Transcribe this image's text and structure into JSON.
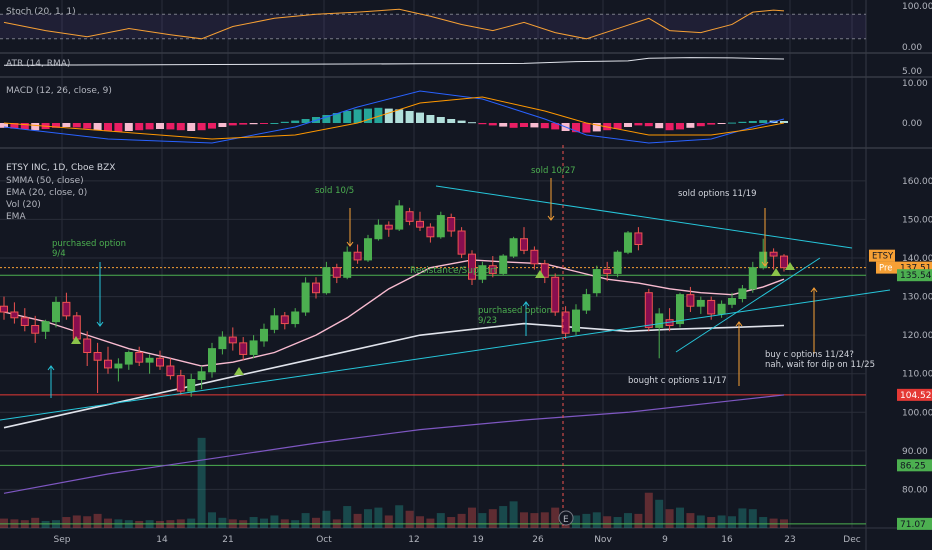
{
  "chart_data": {
    "type": "candlestick",
    "ticker": "ETSY INC, 1D, Cboe BZX",
    "chart_legend": [
      "SMMA (50, close)",
      "EMA (20, close, 0)",
      "Vol (20)",
      "EMA"
    ],
    "x_tick_labels": [
      "Sep",
      "14",
      "21",
      "Oct",
      "12",
      "19",
      "26",
      "Nov",
      "9",
      "16",
      "23",
      "Dec"
    ],
    "price_ticks": [
      "160.00",
      "150.00",
      "140.00",
      "130.00",
      "120.00",
      "110.00",
      "100.00",
      "90.00",
      "80.00"
    ],
    "price_range": [
      70,
      168
    ],
    "candles": [
      {
        "o": 127.5,
        "h": 130.0,
        "l": 124.0,
        "c": 126.0
      },
      {
        "o": 126.0,
        "h": 128.5,
        "l": 123.0,
        "c": 124.5
      },
      {
        "o": 124.5,
        "h": 127.0,
        "l": 121.0,
        "c": 122.5
      },
      {
        "o": 122.5,
        "h": 125.0,
        "l": 118.0,
        "c": 120.5
      },
      {
        "o": 121.0,
        "h": 124.0,
        "l": 119.0,
        "c": 123.5
      },
      {
        "o": 123.5,
        "h": 130.0,
        "l": 122.0,
        "c": 128.5
      },
      {
        "o": 128.5,
        "h": 131.0,
        "l": 124.0,
        "c": 125.0
      },
      {
        "o": 125.0,
        "h": 126.0,
        "l": 118.0,
        "c": 119.0
      },
      {
        "o": 119.0,
        "h": 121.0,
        "l": 112.0,
        "c": 115.5
      },
      {
        "o": 115.5,
        "h": 118.0,
        "l": 105.0,
        "c": 113.5
      },
      {
        "o": 113.5,
        "h": 117.0,
        "l": 110.0,
        "c": 111.5
      },
      {
        "o": 111.5,
        "h": 114.0,
        "l": 108.0,
        "c": 112.5
      },
      {
        "o": 112.5,
        "h": 116.0,
        "l": 111.0,
        "c": 115.5
      },
      {
        "o": 115.5,
        "h": 117.0,
        "l": 112.0,
        "c": 113.0
      },
      {
        "o": 113.0,
        "h": 115.0,
        "l": 110.0,
        "c": 114.0
      },
      {
        "o": 114.0,
        "h": 116.0,
        "l": 111.0,
        "c": 112.0
      },
      {
        "o": 112.0,
        "h": 114.0,
        "l": 108.5,
        "c": 109.5
      },
      {
        "o": 109.5,
        "h": 111.0,
        "l": 104.5,
        "c": 105.5
      },
      {
        "o": 105.5,
        "h": 110.0,
        "l": 104.0,
        "c": 108.5
      },
      {
        "o": 108.5,
        "h": 112.0,
        "l": 106.0,
        "c": 110.5
      },
      {
        "o": 110.5,
        "h": 118.0,
        "l": 109.0,
        "c": 116.5
      },
      {
        "o": 116.5,
        "h": 121.0,
        "l": 115.0,
        "c": 119.5
      },
      {
        "o": 119.5,
        "h": 122.0,
        "l": 116.0,
        "c": 118.0
      },
      {
        "o": 118.0,
        "h": 119.5,
        "l": 113.5,
        "c": 115.0
      },
      {
        "o": 115.0,
        "h": 120.0,
        "l": 114.0,
        "c": 118.5
      },
      {
        "o": 118.5,
        "h": 123.0,
        "l": 117.0,
        "c": 121.5
      },
      {
        "o": 121.5,
        "h": 127.0,
        "l": 120.5,
        "c": 125.0
      },
      {
        "o": 125.0,
        "h": 126.0,
        "l": 121.5,
        "c": 123.0
      },
      {
        "o": 123.0,
        "h": 127.0,
        "l": 122.0,
        "c": 126.0
      },
      {
        "o": 126.0,
        "h": 135.0,
        "l": 125.0,
        "c": 133.5
      },
      {
        "o": 133.5,
        "h": 135.0,
        "l": 129.5,
        "c": 131.0
      },
      {
        "o": 131.0,
        "h": 139.0,
        "l": 130.5,
        "c": 137.5
      },
      {
        "o": 137.5,
        "h": 138.5,
        "l": 133.5,
        "c": 135.0
      },
      {
        "o": 135.0,
        "h": 143.0,
        "l": 134.5,
        "c": 141.5
      },
      {
        "o": 141.5,
        "h": 143.5,
        "l": 138.5,
        "c": 139.5
      },
      {
        "o": 139.5,
        "h": 146.0,
        "l": 139.0,
        "c": 145.0
      },
      {
        "o": 145.0,
        "h": 150.0,
        "l": 144.5,
        "c": 148.5
      },
      {
        "o": 148.5,
        "h": 149.5,
        "l": 145.5,
        "c": 147.5
      },
      {
        "o": 147.5,
        "h": 155.0,
        "l": 147.0,
        "c": 153.5
      },
      {
        "o": 152.0,
        "h": 153.0,
        "l": 148.5,
        "c": 149.5
      },
      {
        "o": 149.5,
        "h": 152.0,
        "l": 147.0,
        "c": 148.0
      },
      {
        "o": 148.0,
        "h": 149.0,
        "l": 144.0,
        "c": 145.5
      },
      {
        "o": 145.5,
        "h": 152.0,
        "l": 145.0,
        "c": 151.0
      },
      {
        "o": 150.5,
        "h": 151.5,
        "l": 145.5,
        "c": 147.0
      },
      {
        "o": 147.0,
        "h": 148.0,
        "l": 140.0,
        "c": 141.0
      },
      {
        "o": 141.0,
        "h": 142.0,
        "l": 133.0,
        "c": 134.5
      },
      {
        "o": 134.5,
        "h": 139.0,
        "l": 133.5,
        "c": 138.0
      },
      {
        "o": 138.0,
        "h": 140.5,
        "l": 135.0,
        "c": 136.0
      },
      {
        "o": 136.0,
        "h": 141.0,
        "l": 135.5,
        "c": 140.5
      },
      {
        "o": 140.5,
        "h": 145.5,
        "l": 140.0,
        "c": 145.0
      },
      {
        "o": 145.0,
        "h": 148.0,
        "l": 141.0,
        "c": 142.0
      },
      {
        "o": 142.0,
        "h": 143.0,
        "l": 137.0,
        "c": 138.5
      },
      {
        "o": 138.5,
        "h": 139.5,
        "l": 133.5,
        "c": 135.0
      },
      {
        "o": 135.0,
        "h": 136.0,
        "l": 125.0,
        "c": 126.0
      },
      {
        "o": 126.0,
        "h": 127.5,
        "l": 119.0,
        "c": 120.5
      },
      {
        "o": 121.0,
        "h": 128.0,
        "l": 120.0,
        "c": 126.5
      },
      {
        "o": 126.5,
        "h": 132.0,
        "l": 125.5,
        "c": 130.5
      },
      {
        "o": 131.0,
        "h": 138.0,
        "l": 130.0,
        "c": 137.0
      },
      {
        "o": 137.0,
        "h": 139.0,
        "l": 134.0,
        "c": 136.0
      },
      {
        "o": 136.0,
        "h": 142.0,
        "l": 135.0,
        "c": 141.5
      },
      {
        "o": 141.5,
        "h": 147.0,
        "l": 141.0,
        "c": 146.5
      },
      {
        "o": 146.5,
        "h": 148.0,
        "l": 142.0,
        "c": 143.5
      },
      {
        "o": 131.0,
        "h": 132.0,
        "l": 121.0,
        "c": 122.0
      },
      {
        "o": 122.0,
        "h": 127.0,
        "l": 114.0,
        "c": 125.5
      },
      {
        "o": 124.0,
        "h": 127.0,
        "l": 121.0,
        "c": 122.5
      },
      {
        "o": 123.0,
        "h": 131.0,
        "l": 122.0,
        "c": 130.5
      },
      {
        "o": 130.5,
        "h": 132.5,
        "l": 126.0,
        "c": 127.5
      },
      {
        "o": 127.5,
        "h": 130.0,
        "l": 125.5,
        "c": 129.0
      },
      {
        "o": 129.0,
        "h": 130.0,
        "l": 124.0,
        "c": 125.5
      },
      {
        "o": 125.5,
        "h": 129.0,
        "l": 124.5,
        "c": 128.0
      },
      {
        "o": 128.0,
        "h": 131.0,
        "l": 127.0,
        "c": 129.5
      },
      {
        "o": 129.5,
        "h": 133.0,
        "l": 128.5,
        "c": 132.0
      },
      {
        "o": 132.0,
        "h": 139.0,
        "l": 131.0,
        "c": 137.5
      },
      {
        "o": 137.5,
        "h": 145.0,
        "l": 137.0,
        "c": 141.5
      },
      {
        "o": 141.5,
        "h": 142.5,
        "l": 137.0,
        "c": 140.5
      },
      {
        "o": 140.5,
        "h": 141.0,
        "l": 136.5,
        "c": 137.5
      }
    ],
    "volume_range": [
      0,
      12.5
    ],
    "volume": [
      1.2,
      1.1,
      1.0,
      1.3,
      0.9,
      1.0,
      1.4,
      1.6,
      1.5,
      1.8,
      1.2,
      1.1,
      1.0,
      0.9,
      1.0,
      0.9,
      1.0,
      1.1,
      1.2,
      11.5,
      2.0,
      1.3,
      1.1,
      1.0,
      1.4,
      1.2,
      1.6,
      1.1,
      1.0,
      1.9,
      1.3,
      2.2,
      1.1,
      2.8,
      1.8,
      2.4,
      2.6,
      1.6,
      2.9,
      2.2,
      1.5,
      1.2,
      1.9,
      1.4,
      1.8,
      2.6,
      1.9,
      2.4,
      2.8,
      3.4,
      2.0,
      1.9,
      2.0,
      2.6,
      1.7,
      1.6,
      1.8,
      2.0,
      1.5,
      1.4,
      1.9,
      1.8,
      4.5,
      3.6,
      2.4,
      2.6,
      1.9,
      1.6,
      1.4,
      1.6,
      1.5,
      2.5,
      2.4,
      1.4,
      1.2,
      1.1
    ],
    "ema20": [
      [
        0,
        126.0
      ],
      [
        4,
        123.5
      ],
      [
        8,
        120.0
      ],
      [
        12,
        116.5
      ],
      [
        16,
        114.0
      ],
      [
        19,
        112.0
      ],
      [
        22,
        113.0
      ],
      [
        26,
        115.5
      ],
      [
        30,
        120.0
      ],
      [
        33,
        124.5
      ],
      [
        37,
        132.0
      ],
      [
        41,
        137.5
      ],
      [
        45,
        139.5
      ],
      [
        48,
        139.0
      ],
      [
        52,
        138.5
      ],
      [
        55,
        136.5
      ],
      [
        58,
        134.5
      ],
      [
        61,
        133.5
      ],
      [
        64,
        132.0
      ],
      [
        67,
        131.0
      ],
      [
        70,
        130.5
      ],
      [
        73,
        132.5
      ],
      [
        75,
        134.5
      ]
    ],
    "smma50": [
      [
        0,
        96.0
      ],
      [
        10,
        102.0
      ],
      [
        20,
        108.0
      ],
      [
        30,
        114.0
      ],
      [
        40,
        120.0
      ],
      [
        50,
        123.0
      ],
      [
        60,
        121.0
      ],
      [
        64,
        121.5
      ],
      [
        70,
        122.0
      ],
      [
        75,
        122.5
      ]
    ],
    "ema_long": [
      [
        0,
        79.0
      ],
      [
        10,
        84.0
      ],
      [
        20,
        88.0
      ],
      [
        30,
        92.0
      ],
      [
        40,
        95.5
      ],
      [
        50,
        98.0
      ],
      [
        60,
        100.0
      ],
      [
        70,
        103.0
      ],
      [
        75,
        104.5
      ]
    ],
    "h_lines": [
      {
        "value": 137.51,
        "label": "137.51",
        "color": "#f7a035"
      },
      {
        "value": 135.54,
        "label": "135.54",
        "color": "#4caf50"
      },
      {
        "value": 104.52,
        "label": "104.52",
        "color": "#e53935"
      },
      {
        "value": 86.25,
        "label": "86.25",
        "color": "#4caf50"
      },
      {
        "value": 71.07,
        "label": "71.07",
        "color": "#4caf50"
      }
    ],
    "price_tags": {
      "symbol": "ETSY",
      "pre": "Pre"
    },
    "annotations": [
      {
        "id": "purchased-9-4",
        "text": [
          "purchased option",
          "9/4"
        ],
        "color": "#4caf50"
      },
      {
        "id": "sold-10-5",
        "text": [
          "sold 10/5"
        ],
        "color": "#4caf50"
      },
      {
        "id": "sold-10-27",
        "text": [
          "sold 10/27"
        ],
        "color": "#4caf50"
      },
      {
        "id": "sold-options-11-19",
        "text": [
          "sold options 11/19"
        ],
        "color": "#d1d4dc"
      },
      {
        "id": "resistance-support",
        "text": [
          "Resistance/Support"
        ],
        "color": "#4caf50"
      },
      {
        "id": "purchased-9-23",
        "text": [
          "purchased option",
          "9/23"
        ],
        "color": "#4caf50"
      },
      {
        "id": "buy-c-options",
        "text": [
          "buy c options 11/24?",
          "nah, wait for dip on 11/25"
        ],
        "color": "#d1d4dc"
      },
      {
        "id": "bought-c-options",
        "text": [
          "bought c options 11/17"
        ],
        "color": "#d1d4dc"
      }
    ]
  },
  "indicators": {
    "stoch": {
      "label": "Stoch (20, 1, 1)",
      "ticks": [
        "100.00",
        "0.00"
      ],
      "range": [
        0,
        100
      ],
      "k": [
        [
          0,
          60
        ],
        [
          4,
          40
        ],
        [
          8,
          25
        ],
        [
          12,
          45
        ],
        [
          16,
          30
        ],
        [
          19,
          20
        ],
        [
          22,
          50
        ],
        [
          26,
          70
        ],
        [
          30,
          80
        ],
        [
          34,
          85
        ],
        [
          38,
          92
        ],
        [
          41,
          75
        ],
        [
          44,
          55
        ],
        [
          47,
          40
        ],
        [
          50,
          60
        ],
        [
          53,
          35
        ],
        [
          56,
          20
        ],
        [
          59,
          45
        ],
        [
          62,
          70
        ],
        [
          64,
          40
        ],
        [
          67,
          35
        ],
        [
          70,
          55
        ],
        [
          72,
          85
        ],
        [
          74,
          90
        ],
        [
          75,
          88
        ]
      ]
    },
    "atr": {
      "label": "ATR (14, RMA)",
      "ticks": [
        "5.00"
      ],
      "range": [
        4.2,
        7.2
      ],
      "series": [
        [
          0,
          5.8
        ],
        [
          10,
          5.85
        ],
        [
          20,
          5.9
        ],
        [
          30,
          5.95
        ],
        [
          40,
          6.0
        ],
        [
          50,
          6.05
        ],
        [
          55,
          6.3
        ],
        [
          60,
          6.4
        ],
        [
          62,
          6.75
        ],
        [
          66,
          6.85
        ],
        [
          70,
          6.8
        ],
        [
          75,
          6.65
        ]
      ]
    },
    "macd": {
      "label": "MACD (12, 26, close, 9)",
      "ticks": [
        "10.00",
        "0.00"
      ],
      "range": [
        -6,
        11
      ],
      "hist": [
        -1.2,
        -1.4,
        -1.6,
        -1.8,
        -1.5,
        -1.2,
        -1.0,
        -1.1,
        -1.4,
        -1.8,
        -2.0,
        -2.2,
        -2.0,
        -1.8,
        -1.6,
        -1.5,
        -1.6,
        -1.8,
        -2.0,
        -1.8,
        -1.4,
        -1.0,
        -0.6,
        -0.4,
        -0.3,
        -0.2,
        0.0,
        0.3,
        0.6,
        1.0,
        1.5,
        2.0,
        2.5,
        3.0,
        3.4,
        3.6,
        3.8,
        3.6,
        3.4,
        3.0,
        2.6,
        2.0,
        1.5,
        1.0,
        0.6,
        0.2,
        -0.3,
        -0.6,
        -0.9,
        -1.2,
        -1.0,
        -1.1,
        -1.3,
        -1.6,
        -2.0,
        -2.3,
        -2.4,
        -2.1,
        -1.8,
        -1.5,
        -1.0,
        -0.6,
        -0.8,
        -1.3,
        -1.8,
        -1.6,
        -1.2,
        -0.8,
        -0.4,
        -0.2,
        0.1,
        0.3,
        0.5,
        0.7,
        0.6,
        0.5
      ],
      "macd": [
        [
          0,
          -1
        ],
        [
          10,
          -4
        ],
        [
          20,
          -5
        ],
        [
          28,
          -1
        ],
        [
          34,
          4
        ],
        [
          40,
          8
        ],
        [
          46,
          6
        ],
        [
          52,
          1
        ],
        [
          56,
          -3
        ],
        [
          62,
          -5
        ],
        [
          68,
          -4
        ],
        [
          72,
          -1
        ],
        [
          75,
          1
        ]
      ],
      "signal": [
        [
          0,
          0
        ],
        [
          10,
          -2
        ],
        [
          20,
          -4
        ],
        [
          28,
          -3
        ],
        [
          34,
          0
        ],
        [
          40,
          5
        ],
        [
          46,
          6.5
        ],
        [
          52,
          3
        ],
        [
          56,
          0
        ],
        [
          62,
          -3
        ],
        [
          68,
          -3
        ],
        [
          72,
          -1.5
        ],
        [
          75,
          0
        ]
      ]
    }
  }
}
